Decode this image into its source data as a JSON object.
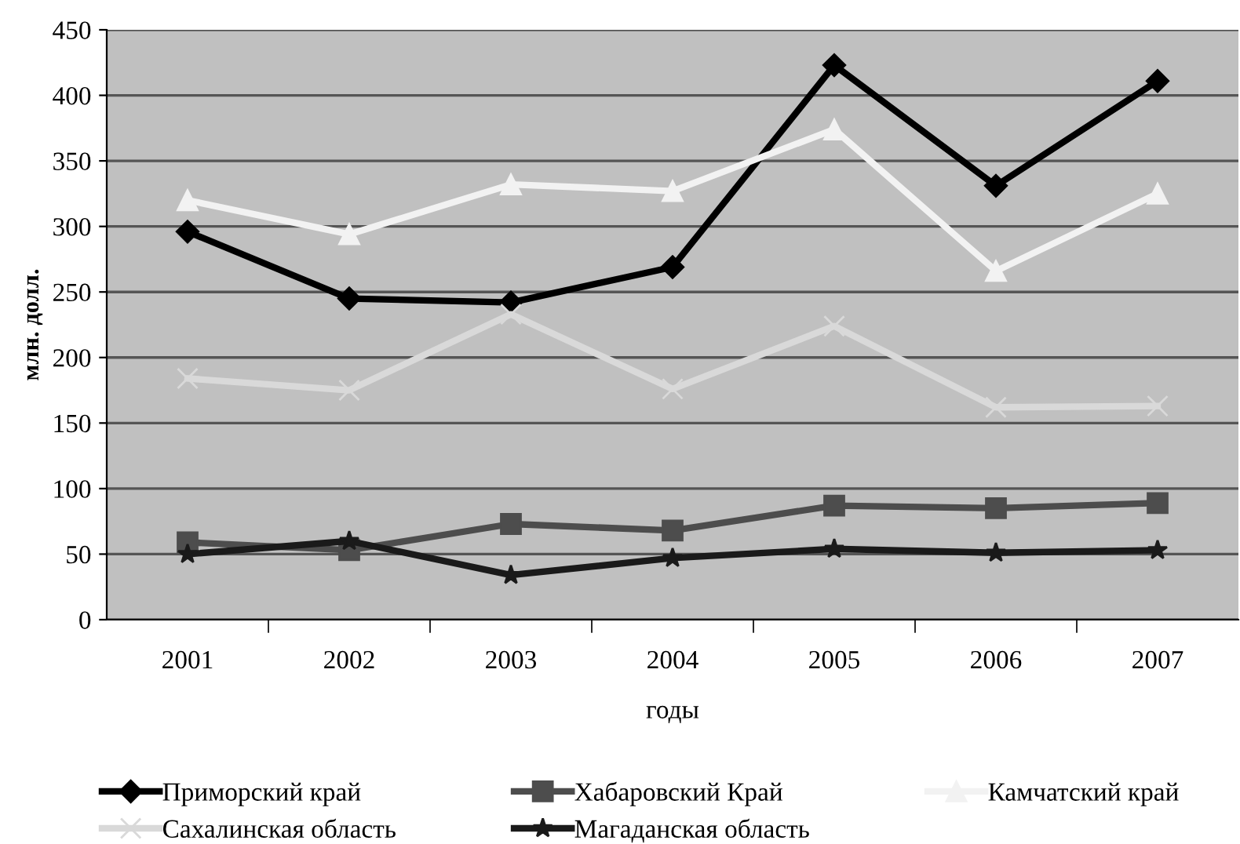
{
  "chart_data": {
    "type": "line",
    "xlabel": "годы",
    "ylabel": "млн. долл.",
    "categories": [
      "2001",
      "2002",
      "2003",
      "2004",
      "2005",
      "2006",
      "2007"
    ],
    "ylim": [
      0,
      450
    ],
    "yticks": [
      0,
      50,
      100,
      150,
      200,
      250,
      300,
      350,
      400,
      450
    ],
    "grid": "y",
    "legend": "bottom",
    "series": [
      {
        "name": "Приморский край",
        "color": "#000000",
        "marker": "diamond",
        "values": [
          296,
          245,
          242,
          269,
          423,
          331,
          411
        ]
      },
      {
        "name": "Хабаровский Край",
        "color": "#4d4d4d",
        "marker": "square",
        "values": [
          59,
          53,
          73,
          68,
          87,
          85,
          89
        ]
      },
      {
        "name": "Камчатский край",
        "color": "#f2f2f2",
        "marker": "triangle",
        "values": [
          320,
          294,
          332,
          327,
          374,
          266,
          325
        ]
      },
      {
        "name": "Сахалинская область",
        "color": "#d9d9d9",
        "marker": "cross",
        "values": [
          184,
          175,
          233,
          176,
          224,
          162,
          163
        ]
      },
      {
        "name": "Магаданская область",
        "color": "#1a1a1a",
        "marker": "star",
        "values": [
          50,
          60,
          34,
          47,
          54,
          51,
          53
        ]
      }
    ]
  }
}
